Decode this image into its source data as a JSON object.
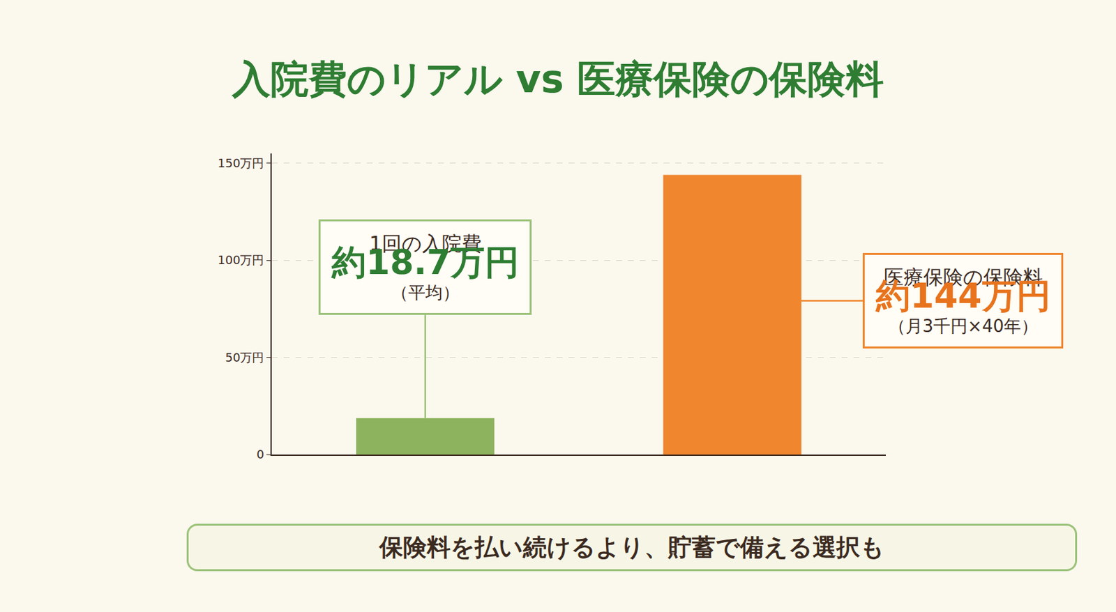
{
  "chart_data": {
    "type": "bar",
    "title": "入院費のリアル vs 医療保険の保険料",
    "categories": [
      null,
      null
    ],
    "values": [
      18.7,
      144
    ],
    "colors": [
      "#8db35e",
      "#f0862e"
    ],
    "data_labels": true,
    "value_labels": [
      "約18.7万円",
      "約144万円"
    ],
    "annotations": [
      {
        "header": "1回の入院費",
        "note": "（平均）"
      },
      {
        "header": "医療保険の保険料",
        "note": "（月3千円×40年）"
      }
    ],
    "footer": "保険料を払い続けるより、貯蓄で備える選択も",
    "ylim": [
      0,
      155
    ],
    "yticks": [
      0,
      {
        "value": 50,
        "label": "50万円"
      },
      {
        "value": 100,
        "label": "100万円"
      },
      {
        "value": 150,
        "label": "150万円"
      }
    ],
    "grid": true,
    "tick_labels": "y"
  }
}
